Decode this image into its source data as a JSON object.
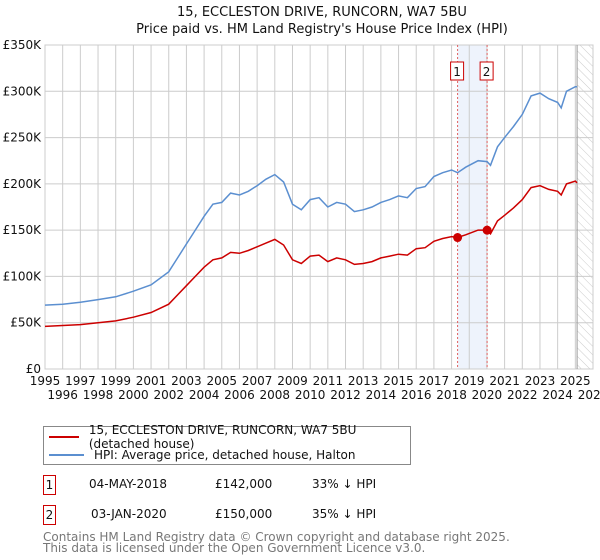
{
  "chart_data": {
    "type": "line",
    "title": "15, ECCLESTON DRIVE, RUNCORN, WA7 5BU",
    "subtitle": "Price paid vs. HM Land Registry's House Price Index (HPI)",
    "xlim": [
      1995,
      2026
    ],
    "ylim": [
      0,
      350000
    ],
    "x_ticks": [
      "1995",
      "1996",
      "1997",
      "1998",
      "1999",
      "2000",
      "2001",
      "2002",
      "2003",
      "2004",
      "2005",
      "2006",
      "2007",
      "2008",
      "2009",
      "2010",
      "2011",
      "2012",
      "2013",
      "2014",
      "2015",
      "2016",
      "2017",
      "2018",
      "2019",
      "2020",
      "2021",
      "2022",
      "2023",
      "2024",
      "2025",
      "2026"
    ],
    "y_ticks": [
      {
        "v": 0,
        "label": "£0"
      },
      {
        "v": 50000,
        "label": "£50K"
      },
      {
        "v": 100000,
        "label": "£100K"
      },
      {
        "v": 150000,
        "label": "£150K"
      },
      {
        "v": 200000,
        "label": "£200K"
      },
      {
        "v": 250000,
        "label": "£250K"
      },
      {
        "v": 300000,
        "label": "£300K"
      },
      {
        "v": 350000,
        "label": "£350K"
      }
    ],
    "grid": true,
    "x": [
      1995,
      1996,
      1997,
      1998,
      1999,
      2000,
      2001,
      2002,
      2002.5,
      2003,
      2003.5,
      2004,
      2004.5,
      2005,
      2005.5,
      2006,
      2006.5,
      2007,
      2007.5,
      2008,
      2008.5,
      2009,
      2009.5,
      2010,
      2010.5,
      2011,
      2011.5,
      2012,
      2012.5,
      2013,
      2013.5,
      2014,
      2014.5,
      2015,
      2015.5,
      2016,
      2016.5,
      2017,
      2017.5,
      2018,
      2018.34,
      2018.8,
      2019.5,
      2020.01,
      2020.2,
      2020.6,
      2021,
      2021.5,
      2022,
      2022.5,
      2023,
      2023.5,
      2024,
      2024.2,
      2024.5,
      2025,
      2025.1
    ],
    "series": [
      {
        "name": "15, ECCLESTON DRIVE, RUNCORN, WA7 5BU (detached house)",
        "color": "#cc0000",
        "values": [
          46000,
          47000,
          48000,
          50000,
          52000,
          56000,
          61000,
          70000,
          80000,
          90000,
          100000,
          110000,
          118000,
          120000,
          126000,
          125000,
          128000,
          132000,
          136000,
          140000,
          134000,
          118000,
          114000,
          122000,
          123000,
          116000,
          120000,
          118000,
          113000,
          114000,
          116000,
          120000,
          122000,
          124000,
          123000,
          130000,
          131000,
          138000,
          141000,
          143000,
          142000,
          145000,
          150000,
          150000,
          146000,
          160000,
          166000,
          174000,
          183000,
          196000,
          198000,
          194000,
          192000,
          188000,
          200000,
          203000,
          201000
        ]
      },
      {
        "name": "HPI: Average price, detached house, Halton",
        "color": "#5b8fd0",
        "values": [
          69000,
          70000,
          72000,
          75000,
          78000,
          84000,
          91000,
          105000,
          120000,
          135000,
          150000,
          165000,
          178000,
          180000,
          190000,
          188000,
          192000,
          198000,
          205000,
          210000,
          202000,
          178000,
          172000,
          183000,
          185000,
          175000,
          180000,
          178000,
          170000,
          172000,
          175000,
          180000,
          183000,
          187000,
          185000,
          195000,
          197000,
          208000,
          212000,
          215000,
          212000,
          218000,
          225000,
          224000,
          220000,
          240000,
          250000,
          262000,
          275000,
          295000,
          298000,
          292000,
          288000,
          282000,
          300000,
          305000,
          305000
        ]
      }
    ],
    "sales": [
      {
        "id": "1",
        "x": 2018.34,
        "y": 142000,
        "date": "04-MAY-2018",
        "price": "£142,000",
        "delta": "33% ↓ HPI"
      },
      {
        "id": "2",
        "x": 2020.01,
        "y": 150000,
        "date": "03-JAN-2020",
        "price": "£150,000",
        "delta": "35% ↓ HPI"
      }
    ],
    "forecast_start": 2025.1,
    "legend_placement": "below"
  },
  "footer": {
    "line1": "Contains HM Land Registry data © Crown copyright and database right 2025.",
    "line2": "This data is licensed under the Open Government Licence v3.0."
  }
}
